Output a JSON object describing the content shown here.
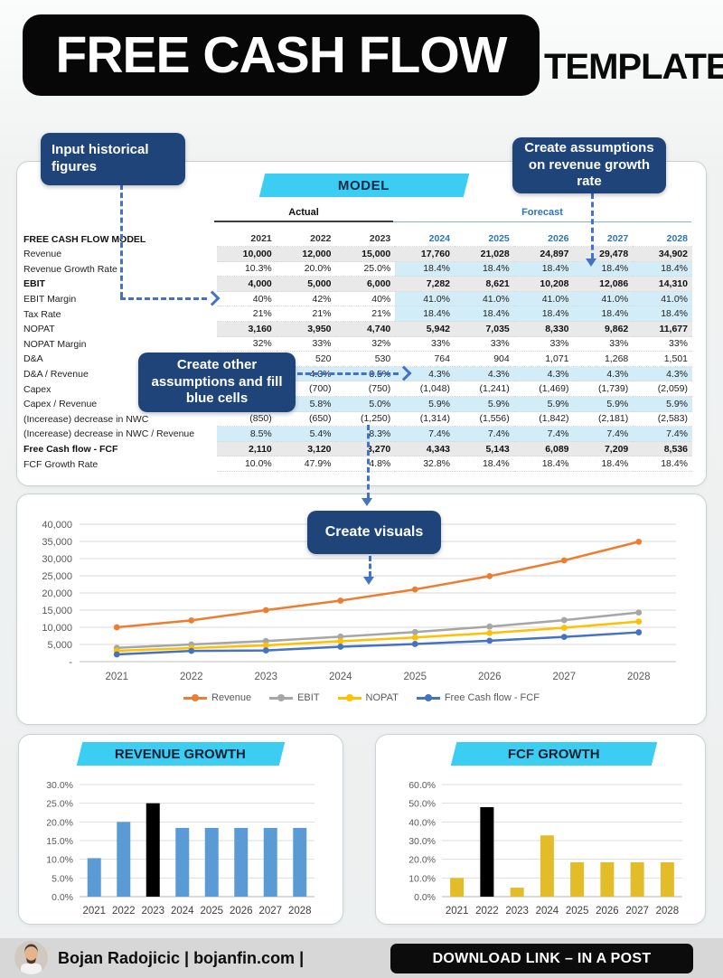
{
  "header": {
    "title": "FREE CASH FLOW",
    "subtitle": "TEMPLATE"
  },
  "callouts": {
    "input_historical": "Input historical figures",
    "revenue_assumptions": "Create assumptions on revenue growth rate",
    "other_assumptions": "Create other assumptions and fill blue cells",
    "create_visuals": "Create visuals"
  },
  "theme": {
    "navy": "#1f4479",
    "cyan": "#3bcdf2",
    "arrow_blue": "#4472c4",
    "table_blue_cell": "#d3edf8",
    "table_gray_row": "#e9e9e9",
    "forecast_text": "#2e75b6",
    "bar_blue": "#5b9bd5",
    "bar_yellow": "#e3bc29"
  },
  "model_table": {
    "banner": "MODEL",
    "group_headers": {
      "actual": "Actual",
      "forecast": "Forecast"
    },
    "header_row": {
      "label": "FREE CASH FLOW MODEL",
      "years": [
        "2021",
        "2022",
        "2023",
        "2024",
        "2025",
        "2026",
        "2027",
        "2028"
      ],
      "actual_count": 3
    },
    "rows": [
      {
        "label": "Revenue",
        "values": [
          "10,000",
          "12,000",
          "15,000",
          "17,760",
          "21,028",
          "24,897",
          "29,478",
          "34,902"
        ],
        "label_bold": false,
        "values_bold": true,
        "shading": "gray"
      },
      {
        "label": "Revenue Growth Rate",
        "values": [
          "10.3%",
          "20.0%",
          "25.0%",
          "18.4%",
          "18.4%",
          "18.4%",
          "18.4%",
          "18.4%"
        ],
        "label_bold": false,
        "values_bold": false,
        "shading": "forecast-blue"
      },
      {
        "label": "EBIT",
        "values": [
          "4,000",
          "5,000",
          "6,000",
          "7,282",
          "8,621",
          "10,208",
          "12,086",
          "14,310"
        ],
        "label_bold": true,
        "values_bold": true,
        "shading": "gray"
      },
      {
        "label": "EBIT Margin",
        "values": [
          "40%",
          "42%",
          "40%",
          "41.0%",
          "41.0%",
          "41.0%",
          "41.0%",
          "41.0%"
        ],
        "label_bold": false,
        "values_bold": false,
        "shading": "forecast-blue"
      },
      {
        "label": "Tax Rate",
        "values": [
          "21%",
          "21%",
          "21%",
          "18.4%",
          "18.4%",
          "18.4%",
          "18.4%",
          "18.4%"
        ],
        "label_bold": false,
        "values_bold": false,
        "shading": "forecast-blue"
      },
      {
        "label": "NOPAT",
        "values": [
          "3,160",
          "3,950",
          "4,740",
          "5,942",
          "7,035",
          "8,330",
          "9,862",
          "11,677"
        ],
        "label_bold": false,
        "values_bold": true,
        "shading": "gray"
      },
      {
        "label": "NOPAT Margin",
        "values": [
          "32%",
          "33%",
          "32%",
          "33%",
          "33%",
          "33%",
          "33%",
          "33%"
        ],
        "label_bold": false,
        "values_bold": false,
        "shading": "none"
      },
      {
        "label": "D&A",
        "values": [
          "",
          "520",
          "530",
          "764",
          "904",
          "1,071",
          "1,268",
          "1,501"
        ],
        "label_bold": false,
        "values_bold": false,
        "shading": "none"
      },
      {
        "label": "D&A / Revenue",
        "values": [
          "",
          "4.3%",
          "3.5%",
          "4.3%",
          "4.3%",
          "4.3%",
          "4.3%",
          "4.3%"
        ],
        "label_bold": false,
        "values_bold": false,
        "shading": "blue"
      },
      {
        "label": "Capex",
        "values": [
          "",
          "(700)",
          "(750)",
          "(1,048)",
          "(1,241)",
          "(1,469)",
          "(1,739)",
          "(2,059)"
        ],
        "label_bold": false,
        "values_bold": false,
        "shading": "none"
      },
      {
        "label": "Capex / Revenue",
        "values": [
          "",
          "5.8%",
          "5.0%",
          "5.9%",
          "5.9%",
          "5.9%",
          "5.9%",
          "5.9%"
        ],
        "label_bold": false,
        "values_bold": false,
        "shading": "blue"
      },
      {
        "label": "(Incerease) decrease in NWC",
        "values": [
          "(850)",
          "(650)",
          "(1,250)",
          "(1,314)",
          "(1,556)",
          "(1,842)",
          "(2,181)",
          "(2,583)"
        ],
        "label_bold": false,
        "values_bold": false,
        "shading": "none"
      },
      {
        "label": "(Incerease) decrease in NWC / Revenue",
        "values": [
          "8.5%",
          "5.4%",
          "8.3%",
          "7.4%",
          "7.4%",
          "7.4%",
          "7.4%",
          "7.4%"
        ],
        "label_bold": false,
        "values_bold": false,
        "shading": "blue"
      },
      {
        "label": "Free Cash flow - FCF",
        "values": [
          "2,110",
          "3,120",
          "3,270",
          "4,343",
          "5,143",
          "6,089",
          "7,209",
          "8,536"
        ],
        "label_bold": true,
        "values_bold": true,
        "shading": "gray"
      },
      {
        "label": "FCF Growth Rate",
        "values": [
          "10.0%",
          "47.9%",
          "4.8%",
          "32.8%",
          "18.4%",
          "18.4%",
          "18.4%",
          "18.4%"
        ],
        "label_bold": false,
        "values_bold": false,
        "shading": "none"
      }
    ]
  },
  "chart_data": [
    {
      "type": "line",
      "title": "",
      "x": [
        "2021",
        "2022",
        "2023",
        "2024",
        "2025",
        "2026",
        "2027",
        "2028"
      ],
      "series": [
        {
          "name": "Revenue",
          "color": "#ED7D31",
          "values": [
            10000,
            12000,
            15000,
            17760,
            21028,
            24897,
            29478,
            34902
          ]
        },
        {
          "name": "EBIT",
          "color": "#A6A6A6",
          "values": [
            4000,
            5000,
            6000,
            7282,
            8621,
            10208,
            12086,
            14310
          ]
        },
        {
          "name": "NOPAT",
          "color": "#FFC000",
          "values": [
            3160,
            3950,
            4740,
            5942,
            7035,
            8330,
            9862,
            11677
          ]
        },
        {
          "name": "Free Cash flow - FCF",
          "color": "#4472C4",
          "values": [
            2110,
            3120,
            3270,
            4343,
            5143,
            6089,
            7209,
            8536
          ]
        }
      ],
      "ylim": [
        0,
        40000
      ],
      "ytick_step": 5000,
      "ytick_labels": [
        "-",
        "5,000",
        "10,000",
        "15,000",
        "20,000",
        "25,000",
        "30,000",
        "35,000",
        "40,000"
      ],
      "grid": true,
      "legend_position": "bottom"
    },
    {
      "type": "bar",
      "title": "REVENUE GROWTH",
      "categories": [
        "2021",
        "2022",
        "2023",
        "2024",
        "2025",
        "2026",
        "2027",
        "2028"
      ],
      "values": [
        10.3,
        20.0,
        25.0,
        18.4,
        18.4,
        18.4,
        18.4,
        18.4
      ],
      "bar_color": "#5b9bd5",
      "highlight_index": 2,
      "highlight_color": "#000000",
      "ylim": [
        0,
        30
      ],
      "ytick_step": 5,
      "ylabel_suffix": "%",
      "grid": true
    },
    {
      "type": "bar",
      "title": "FCF GROWTH",
      "categories": [
        "2021",
        "2022",
        "2023",
        "2024",
        "2025",
        "2026",
        "2027",
        "2028"
      ],
      "values": [
        10.0,
        47.9,
        4.8,
        32.8,
        18.4,
        18.4,
        18.4,
        18.4
      ],
      "bar_color": "#e3bc29",
      "highlight_index": 1,
      "highlight_color": "#000000",
      "ylim": [
        0,
        60
      ],
      "ytick_step": 10,
      "ylabel_suffix": "%",
      "grid": true
    }
  ],
  "footer": {
    "author": "Bojan Radojicic | bojanfin.com |",
    "download_label": "DOWNLOAD LINK – IN A POST"
  }
}
